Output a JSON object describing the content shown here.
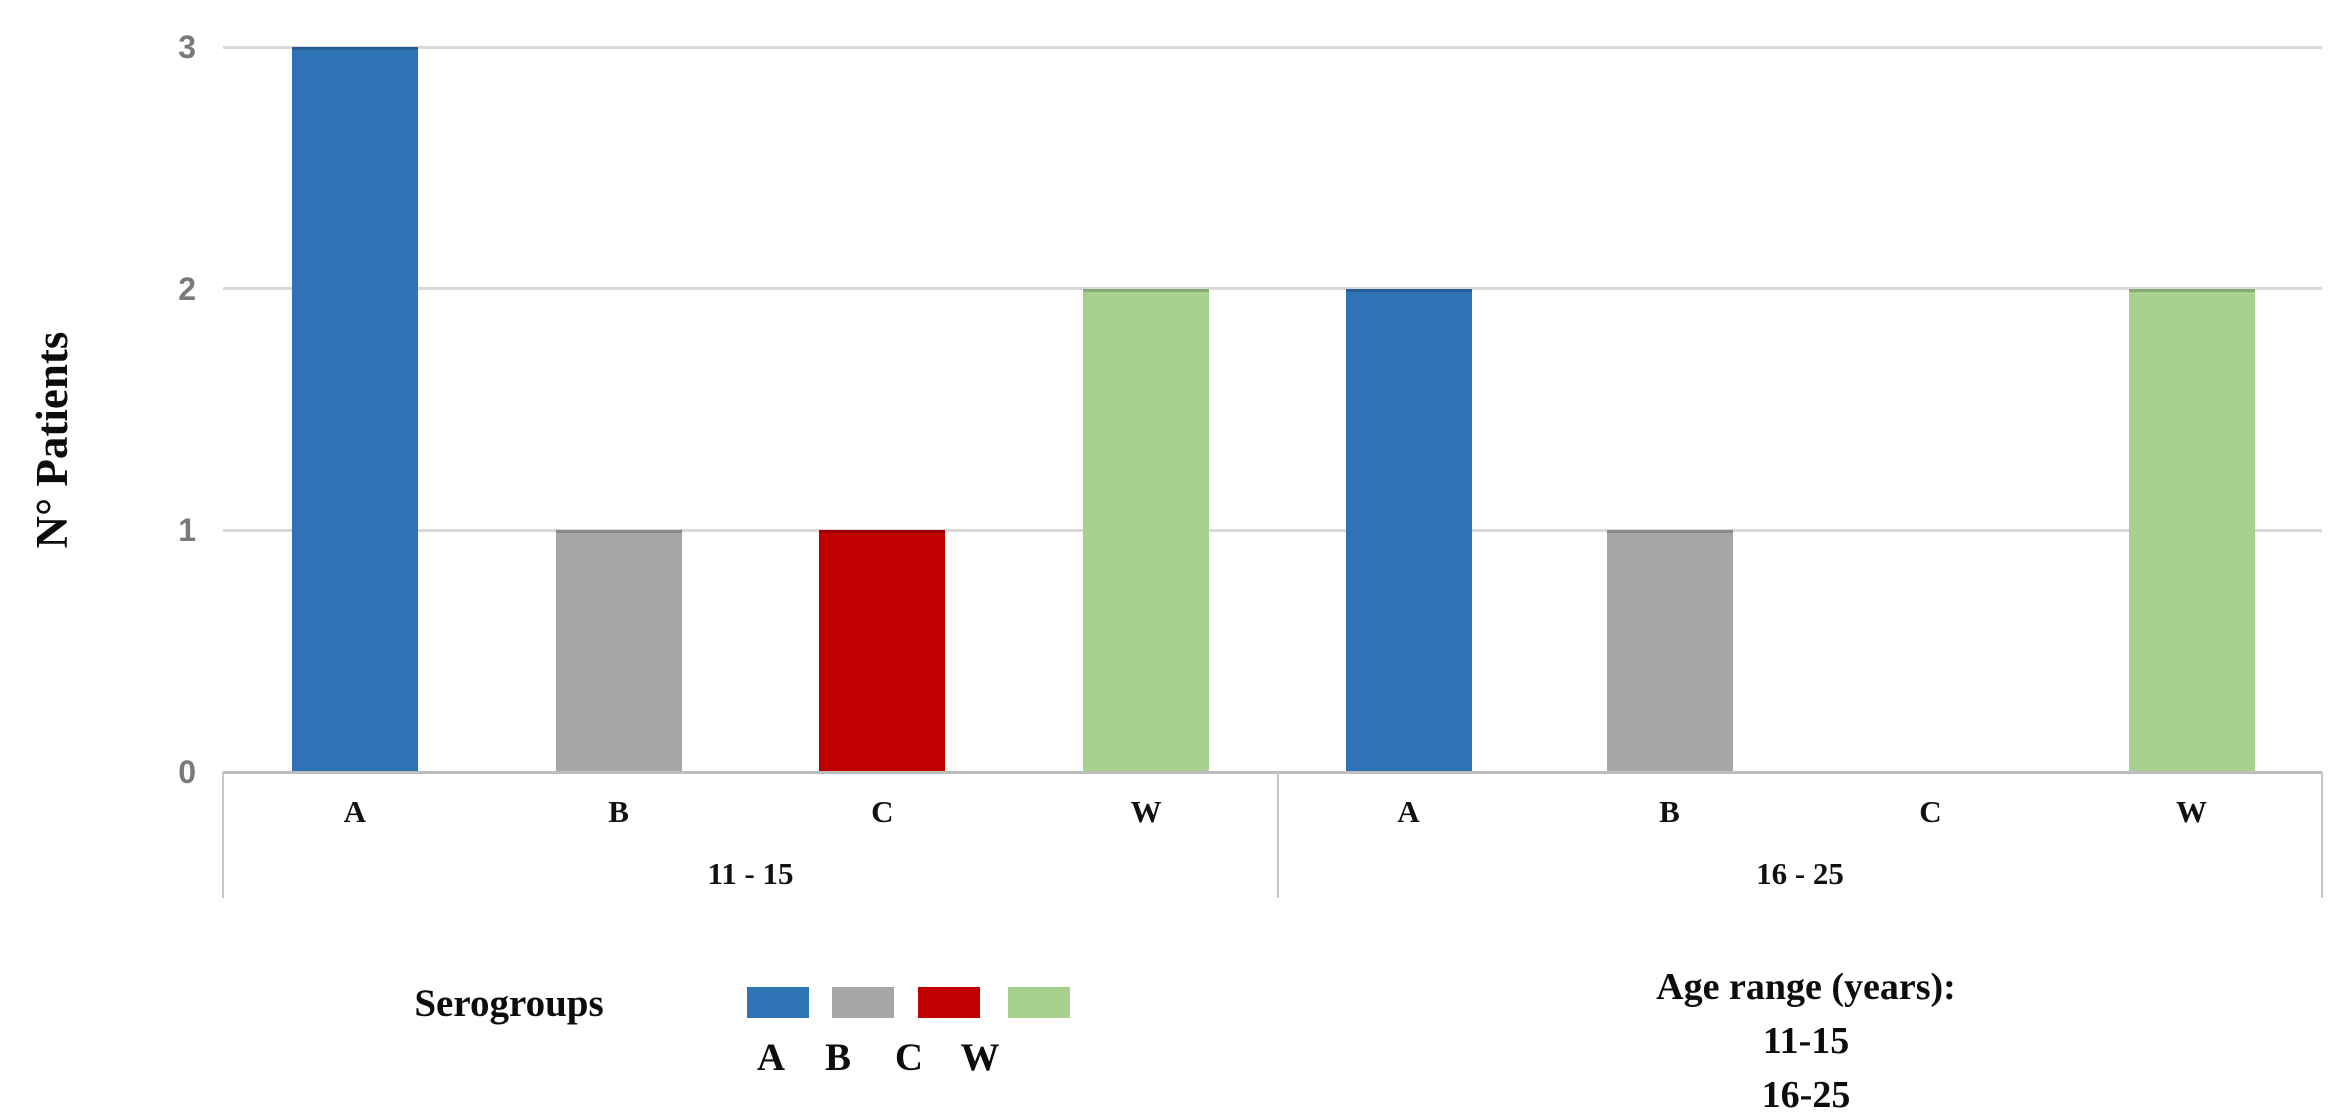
{
  "chart_data": {
    "type": "bar",
    "title": "",
    "ylabel": "N° Patients",
    "ylim": [
      0,
      3
    ],
    "y_ticks": [
      "0",
      "1",
      "2",
      "3"
    ],
    "grid": true,
    "categories": [
      "A",
      "B",
      "C",
      "W"
    ],
    "groups": [
      {
        "label": "11 - 15",
        "values": [
          3,
          1,
          1,
          2
        ]
      },
      {
        "label": "16 - 25",
        "values": [
          2,
          1,
          0,
          2
        ]
      }
    ],
    "colors": {
      "A": "#2e74b5",
      "B": "#a6a6a6",
      "C": "#c00000",
      "W": "#a7d18c"
    },
    "legend_position": "bottom"
  },
  "legend": {
    "title": "Serogroups",
    "items": [
      {
        "label": "A",
        "color": "#2e74b5"
      },
      {
        "label": "B",
        "color": "#a6a6a6"
      },
      {
        "label": "C",
        "color": "#c00000"
      },
      {
        "label": "W",
        "color": "#a9d18e"
      }
    ]
  },
  "annotation": {
    "title": "Age range (years):",
    "lines": [
      "11-15",
      "16-25"
    ]
  }
}
